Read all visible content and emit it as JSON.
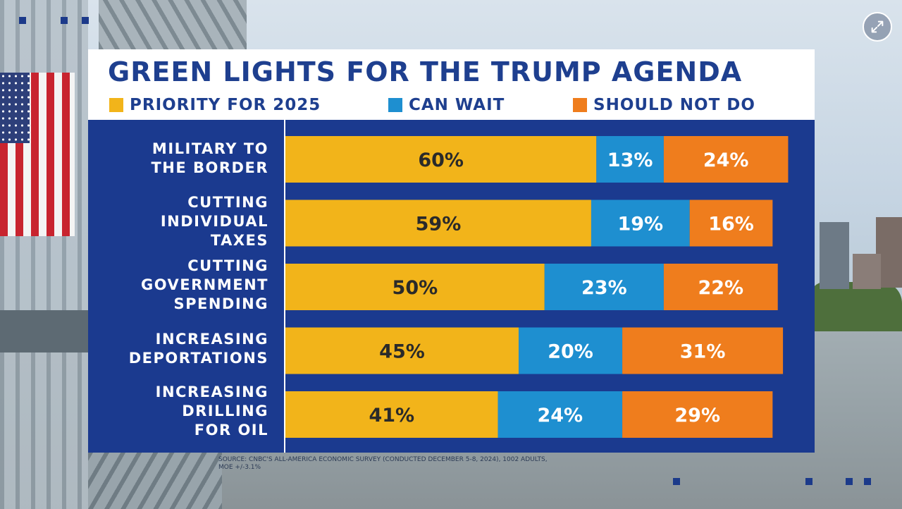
{
  "title": "GREEN LIGHTS FOR THE TRUMP AGENDA",
  "legend": [
    {
      "label": "PRIORITY FOR 2025",
      "color": "#f2b41a"
    },
    {
      "label": "CAN WAIT",
      "color": "#1e8fd0"
    },
    {
      "label": "SHOULD NOT DO",
      "color": "#ef7d1d"
    }
  ],
  "source": "SOURCE: CNBC'S ALL-AMERICA ECONOMIC SURVEY (CONDUCTED DECEMBER 5-8, 2024), 1002 ADULTS, MOE +/-3.1%",
  "controls": {
    "expand_icon": "expand-icon"
  },
  "chart_data": {
    "type": "bar",
    "orientation": "horizontal",
    "stacked": true,
    "title": "GREEN LIGHTS FOR THE TRUMP AGENDA",
    "categories": [
      "MILITARY TO\nTHE BORDER",
      "CUTTING\nINDIVIDUAL\nTAXES",
      "CUTTING\nGOVERNMENT\nSPENDING",
      "INCREASING\nDEPORTATIONS",
      "INCREASING\nDRILLING\nFOR OIL"
    ],
    "series": [
      {
        "name": "PRIORITY FOR 2025",
        "color": "#f2b41a",
        "values": [
          60,
          59,
          50,
          45,
          41
        ],
        "labels": [
          "60%",
          "59%",
          "50%",
          "45%",
          "41%"
        ]
      },
      {
        "name": "CAN WAIT",
        "color": "#1e8fd0",
        "values": [
          13,
          19,
          23,
          20,
          24
        ],
        "labels": [
          "13%",
          "19%",
          "23%",
          "20%",
          "24%"
        ]
      },
      {
        "name": "SHOULD NOT DO",
        "color": "#ef7d1d",
        "values": [
          24,
          16,
          22,
          31,
          29
        ],
        "labels": [
          "24%",
          "16%",
          "22%",
          "31%",
          "29%"
        ]
      }
    ],
    "xlim": [
      0,
      100
    ],
    "grid": false,
    "legend_position": "top"
  }
}
